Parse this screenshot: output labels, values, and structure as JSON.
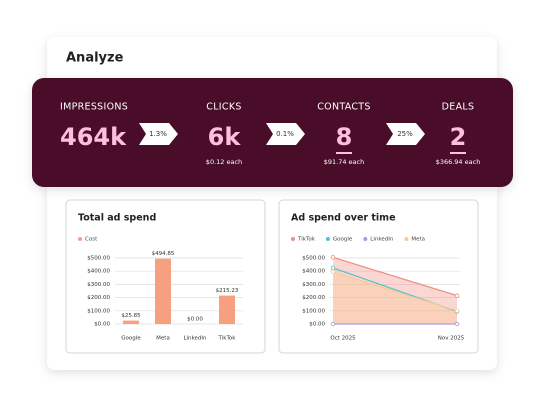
{
  "title": "Analyze",
  "funnel": {
    "stages": [
      {
        "label": "IMPRESSIONS",
        "value": "464k"
      },
      {
        "label": "CLICKS",
        "value": "6k",
        "note": "$0.12 each"
      },
      {
        "label": "CONTACTS",
        "value": "8",
        "note": "$91.74 each"
      },
      {
        "label": "DEALS",
        "value": "2",
        "note": "$366.94 each"
      }
    ],
    "rates": [
      "1.3%",
      "0.1%",
      "25%"
    ]
  },
  "chart_data": [
    {
      "type": "bar",
      "title": "Total ad spend",
      "categories": [
        "Google",
        "Meta",
        "LinkedIn",
        "TikTok"
      ],
      "series": [
        {
          "name": "Cost",
          "color": "#f7a07f",
          "values": [
            25.85,
            494.85,
            0,
            215.23
          ],
          "value_labels": [
            "$25.85",
            "$494.85",
            "$0.00",
            "$215.23"
          ]
        }
      ],
      "ylim": [
        0,
        500
      ],
      "yticks": [
        {
          "value": 0,
          "label": "$0.00"
        },
        {
          "value": 100,
          "label": "$100.00"
        },
        {
          "value": 200,
          "label": "$200.00"
        },
        {
          "value": 300,
          "label": "$300.00"
        },
        {
          "value": 400,
          "label": "$400.00"
        },
        {
          "value": 500,
          "label": "$500.00"
        }
      ],
      "grid": true
    },
    {
      "type": "line",
      "title": "Ad spend over time",
      "categories": [
        "Oct 2025",
        "Nov 2025"
      ],
      "series": [
        {
          "name": "TikTok",
          "color": "#f08c80",
          "values": [
            505,
            215
          ],
          "area": true
        },
        {
          "name": "Google",
          "color": "#4cc3cf",
          "values": [
            425,
            95
          ]
        },
        {
          "name": "LinkedIn",
          "color": "#a99be0",
          "values": [
            0,
            0
          ]
        },
        {
          "name": "Meta",
          "color": "#f9c98f",
          "values": [
            395,
            100
          ],
          "area": true
        }
      ],
      "ylim": [
        0,
        500
      ],
      "yticks": [
        {
          "value": 0,
          "label": "$0.00"
        },
        {
          "value": 100,
          "label": "$100.00"
        },
        {
          "value": 200,
          "label": "$200.00"
        },
        {
          "value": 300,
          "label": "$300.00"
        },
        {
          "value": 400,
          "label": "$400.00"
        },
        {
          "value": 500,
          "label": "$500.00"
        }
      ],
      "grid": true
    }
  ]
}
